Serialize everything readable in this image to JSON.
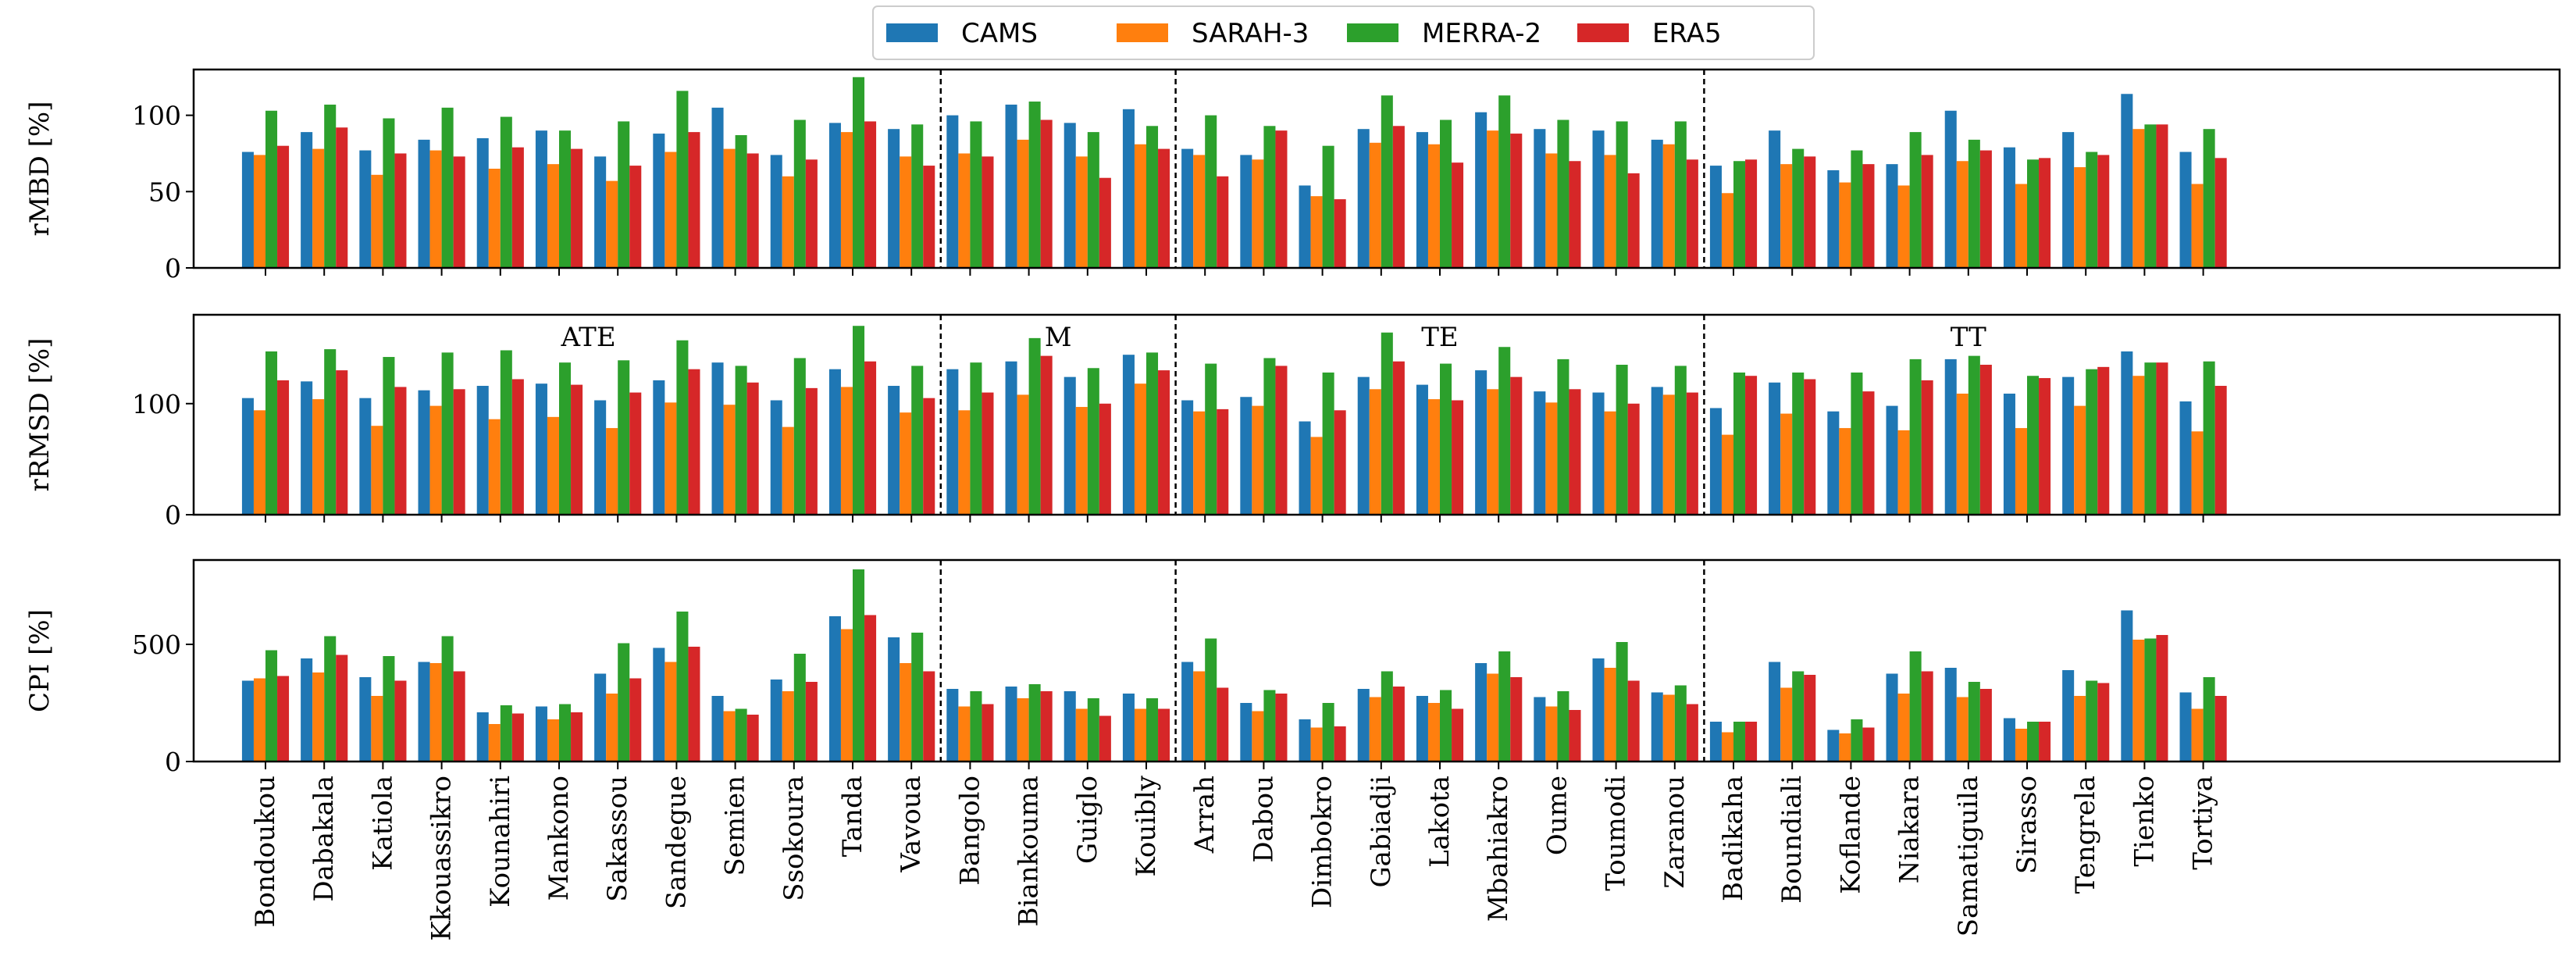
{
  "chart_data": {
    "type": "bar",
    "legend_position": "top-center",
    "series_names": [
      "CAMS",
      "SARAH-3",
      "MERRA-2",
      "ERA5"
    ],
    "colors": {
      "CAMS": "#1f77b4",
      "SARAH-3": "#ff7f0e",
      "MERRA-2": "#2ca02c",
      "ERA5": "#d62728"
    },
    "categories": [
      "Bondoukou",
      "Dabakala",
      "Katiola",
      "Kkouassikro",
      "Kounahiri",
      "Mankono",
      "Sakassou",
      "Sandegue",
      "Semien",
      "Ssokoura",
      "Tanda",
      "Vavoua",
      "Bangolo",
      "Biankouma",
      "Guiglo",
      "Kouibly",
      "Arrah",
      "Dabou",
      "Dimbokro",
      "Gabiadji",
      "Lakota",
      "Mbahiakro",
      "Oume",
      "Toumodi",
      "Zaranou",
      "Badikaha",
      "Boundiali",
      "Koflande",
      "Niakara",
      "Samatiguila",
      "Sirasso",
      "Tengrela",
      "Tienko",
      "Tortiya"
    ],
    "regions": [
      {
        "name": "ATE",
        "start": 0,
        "end": 11
      },
      {
        "name": "M",
        "start": 12,
        "end": 15
      },
      {
        "name": "TE",
        "start": 16,
        "end": 24
      },
      {
        "name": "TT",
        "start": 25,
        "end": 33
      }
    ],
    "panels": [
      {
        "ylabel": "rMBD [%]",
        "ylim": [
          0,
          130
        ],
        "yticks": [
          0,
          50,
          100
        ],
        "show_region_labels": false,
        "series": [
          {
            "name": "CAMS",
            "values": [
              76,
              89,
              77,
              84,
              85,
              90,
              73,
              88,
              105,
              74,
              95,
              91,
              100,
              107,
              95,
              104,
              78,
              74,
              54,
              91,
              89,
              102,
              91,
              90,
              84,
              67,
              90,
              64,
              68,
              103,
              79,
              89,
              114,
              76
            ]
          },
          {
            "name": "SARAH-3",
            "values": [
              74,
              78,
              61,
              77,
              65,
              68,
              57,
              76,
              78,
              60,
              89,
              73,
              75,
              84,
              73,
              81,
              74,
              71,
              47,
              82,
              81,
              90,
              75,
              74,
              81,
              49,
              68,
              56,
              54,
              70,
              55,
              66,
              91,
              55
            ]
          },
          {
            "name": "MERRA-2",
            "values": [
              103,
              107,
              98,
              105,
              99,
              90,
              96,
              116,
              87,
              97,
              125,
              94,
              96,
              109,
              89,
              93,
              100,
              93,
              80,
              113,
              97,
              113,
              97,
              96,
              96,
              70,
              78,
              77,
              89,
              84,
              71,
              76,
              94,
              91
            ]
          },
          {
            "name": "ERA5",
            "values": [
              80,
              92,
              75,
              73,
              79,
              78,
              67,
              89,
              75,
              71,
              96,
              67,
              73,
              97,
              59,
              78,
              60,
              90,
              45,
              93,
              69,
              88,
              70,
              62,
              71,
              71,
              73,
              68,
              74,
              77,
              72,
              74,
              94,
              72
            ]
          }
        ]
      },
      {
        "ylabel": "rRMSD [%]",
        "ylim": [
          0,
          180
        ],
        "yticks": [
          0,
          100
        ],
        "show_region_labels": true,
        "series": [
          {
            "name": "CAMS",
            "values": [
              105,
              120,
              105,
              112,
              116,
              118,
              103,
              121,
              137,
              103,
              131,
              116,
              131,
              138,
              124,
              144,
              103,
              106,
              84,
              124,
              117,
              130,
              111,
              110,
              115,
              96,
              119,
              93,
              98,
              140,
              109,
              124,
              147,
              102
            ]
          },
          {
            "name": "SARAH-3",
            "values": [
              94,
              104,
              80,
              98,
              86,
              88,
              78,
              101,
              99,
              79,
              115,
              92,
              94,
              108,
              97,
              118,
              93,
              98,
              70,
              113,
              104,
              113,
              101,
              93,
              108,
              72,
              91,
              78,
              76,
              109,
              78,
              98,
              125,
              75
            ]
          },
          {
            "name": "MERRA-2",
            "values": [
              147,
              149,
              142,
              146,
              148,
              137,
              139,
              157,
              134,
              141,
              170,
              134,
              137,
              159,
              132,
              146,
              136,
              141,
              128,
              164,
              136,
              151,
              140,
              135,
              134,
              128,
              128,
              128,
              140,
              143,
              125,
              131,
              137,
              138
            ]
          },
          {
            "name": "ERA5",
            "values": [
              121,
              130,
              115,
              113,
              122,
              117,
              110,
              131,
              119,
              114,
              138,
              105,
              110,
              143,
              100,
              130,
              95,
              134,
              94,
              138,
              103,
              124,
              113,
              100,
              110,
              125,
              122,
              111,
              121,
              135,
              123,
              133,
              137,
              116
            ]
          }
        ]
      },
      {
        "ylabel": "CPI [%]",
        "ylim": [
          0,
          860
        ],
        "yticks": [
          0,
          500
        ],
        "show_region_labels": false,
        "series": [
          {
            "name": "CAMS",
            "values": [
              345,
              440,
              360,
              425,
              210,
              235,
              375,
              485,
              280,
              350,
              620,
              530,
              310,
              320,
              300,
              290,
              425,
              250,
              180,
              310,
              280,
              420,
              275,
              440,
              295,
              170,
              425,
              135,
              375,
              400,
              185,
              390,
              645,
              295
            ]
          },
          {
            "name": "SARAH-3",
            "values": [
              355,
              380,
              280,
              420,
              160,
              180,
              290,
              425,
              215,
              300,
              565,
              420,
              235,
              270,
              225,
              225,
              385,
              215,
              145,
              275,
              250,
              375,
              235,
              400,
              285,
              125,
              315,
              120,
              290,
              275,
              140,
              280,
              520,
              225
            ]
          },
          {
            "name": "MERRA-2",
            "values": [
              475,
              535,
              450,
              535,
              240,
              245,
              505,
              640,
              225,
              460,
              820,
              550,
              300,
              330,
              270,
              270,
              525,
              305,
              250,
              385,
              305,
              470,
              300,
              510,
              325,
              170,
              385,
              180,
              470,
              340,
              170,
              345,
              525,
              360
            ]
          },
          {
            "name": "ERA5",
            "values": [
              365,
              455,
              345,
              385,
              205,
              210,
              355,
              490,
              200,
              340,
              625,
              385,
              245,
              300,
              195,
              225,
              315,
              290,
              150,
              320,
              225,
              360,
              220,
              345,
              245,
              170,
              370,
              145,
              385,
              310,
              170,
              335,
              540,
              280
            ]
          }
        ]
      }
    ]
  }
}
